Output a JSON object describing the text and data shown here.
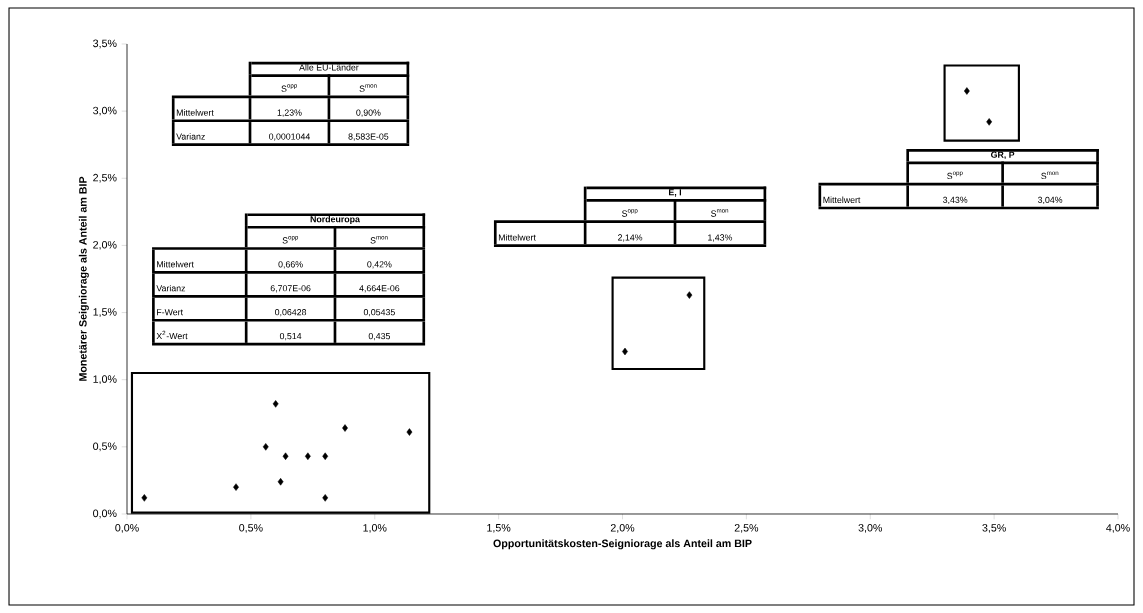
{
  "chart_data": {
    "type": "scatter",
    "xlabel": "Opportunitätskosten-Seigniorage als Anteil am BIP",
    "ylabel": "Monetärer Seigniorage als Anteil am BIP",
    "x": [
      0.07,
      0.44,
      0.56,
      0.6,
      0.62,
      0.64,
      0.73,
      0.8,
      0.8,
      0.88,
      1.14,
      2.01,
      2.27,
      3.39,
      3.48
    ],
    "values": [
      0.12,
      0.2,
      0.5,
      0.82,
      0.24,
      0.43,
      0.43,
      0.43,
      0.12,
      0.64,
      0.61,
      1.21,
      1.63,
      3.15,
      2.92
    ],
    "color": "#000000",
    "marker": "diamond",
    "xlim": [
      0,
      4
    ],
    "ylim": [
      0,
      3.5
    ],
    "xticks": [
      {
        "value": 0,
        "label": "0,0%"
      },
      {
        "value": 0.5,
        "label": "0,5%"
      },
      {
        "value": 1,
        "label": "1,0%"
      },
      {
        "value": 1.5,
        "label": "1,5%"
      },
      {
        "value": 2,
        "label": "2,0%"
      },
      {
        "value": 2.5,
        "label": "2,5%"
      },
      {
        "value": 3,
        "label": "3,0%"
      },
      {
        "value": 3.5,
        "label": "3,5%"
      },
      {
        "value": 4,
        "label": "4,0%"
      }
    ],
    "yticks": [
      {
        "value": 0,
        "label": "0,0%"
      },
      {
        "value": 0.5,
        "label": "0,5%"
      },
      {
        "value": 1,
        "label": "1,0%"
      },
      {
        "value": 1.5,
        "label": "1,5%"
      },
      {
        "value": 2,
        "label": "2,0%"
      },
      {
        "value": 2.5,
        "label": "2,5%"
      },
      {
        "value": 3,
        "label": "3,0%"
      },
      {
        "value": 3.5,
        "label": "3,5%"
      }
    ],
    "annotations": [
      "Alle EU-Länder",
      "S$^{opp}$",
      "S$^{mon}$",
      "Mittelwert",
      "1,23%",
      "0,90%",
      "Varianz",
      "0,0001044",
      "8,583E-05",
      "Nordeuropa",
      "S$^{opp}$",
      "S$^{mon}$",
      "Mittelwert",
      "0,66%",
      "0,42%",
      "Varianz",
      "6,707E-06",
      "4,664E-06",
      "F-Wert",
      "0,06428",
      "0,05435",
      "X$^{2}$-Wert",
      "0,514",
      "0,435",
      "E, I",
      "S$^{opp}$",
      "S$^{mon}$",
      "Mittelwert",
      "2,14%",
      "1,43%",
      "GR, P",
      "S$^{opp}$",
      "S$^{mon}$",
      "Mittelwert",
      "3,43%",
      "3,04%"
    ]
  }
}
